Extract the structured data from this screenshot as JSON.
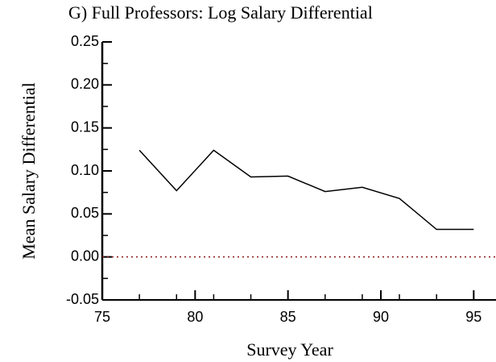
{
  "chart_data": {
    "type": "line",
    "title": "G)  Full Professors:  Log Salary Differential",
    "x_label": "Survey Year",
    "y_label": "Mean Salary Differential",
    "x": [
      77,
      79,
      81,
      83,
      85,
      87,
      89,
      91,
      93,
      95
    ],
    "values": [
      0.124,
      0.077,
      0.124,
      0.093,
      0.094,
      0.076,
      0.081,
      0.068,
      0.032,
      0.032
    ],
    "color": "#000000",
    "xlim": [
      75,
      96.2
    ],
    "xticks": [
      75,
      80,
      85,
      90,
      95
    ],
    "xminorticks": [
      77,
      79,
      81,
      83,
      85,
      87,
      89,
      91,
      93,
      95
    ],
    "ylim": [
      -0.05,
      0.25
    ],
    "yticks": [
      -0.05,
      {
        "value": 0,
        "label": "0.00"
      },
      0.05,
      {
        "value": 0.1,
        "label": "0.10"
      },
      0.15,
      {
        "value": 0.2,
        "label": "0.20"
      },
      0.25
    ],
    "yminorticks": [
      -0.025,
      0.025,
      0.075,
      0.125,
      0.175,
      0.225
    ],
    "reference_line": {
      "value": 0,
      "color": "#8b1a1a"
    }
  }
}
